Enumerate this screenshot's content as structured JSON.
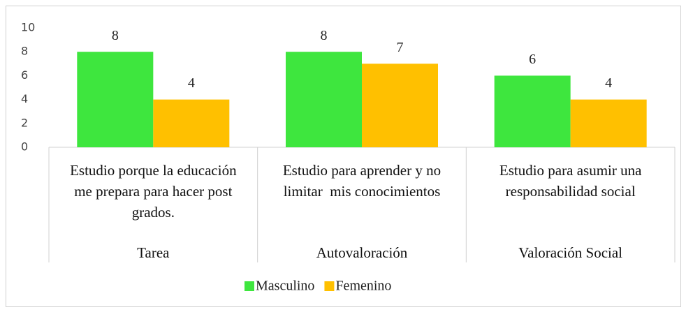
{
  "chart_data": {
    "type": "bar",
    "categories": [
      "Estudio porque la educación me prepara para hacer post grados.",
      "Estudio para aprender y no limitar  mis conocimientos",
      "Estudio para asumir una responsabilidad social"
    ],
    "groups": [
      "Tarea",
      "Autovaloración",
      "Valoración Social"
    ],
    "series": [
      {
        "name": "Masculino",
        "color": "#3ee63e",
        "values": [
          8,
          8,
          6
        ]
      },
      {
        "name": "Femenino",
        "color": "#ffc000",
        "values": [
          4,
          7,
          4
        ]
      }
    ],
    "ylim": [
      0,
      10
    ],
    "yticks": [
      0,
      2,
      4,
      6,
      8,
      10
    ],
    "grid": false
  }
}
